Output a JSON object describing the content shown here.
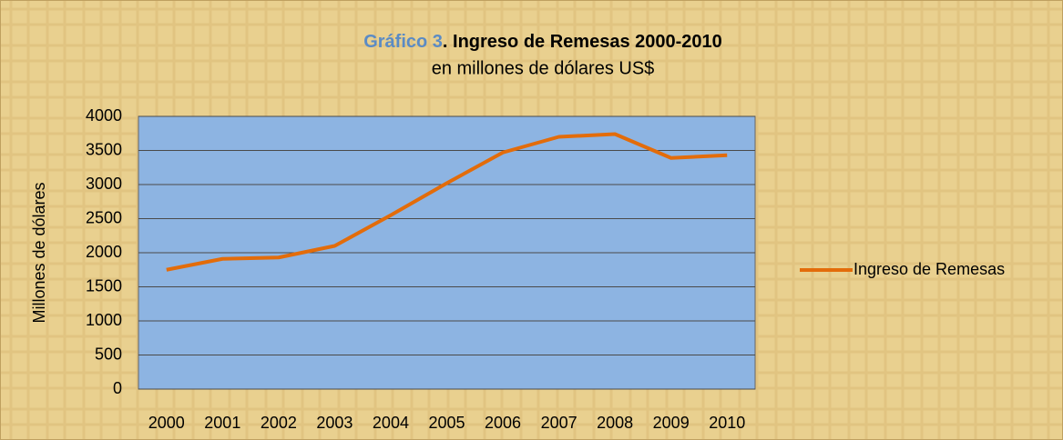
{
  "chart_data": {
    "type": "line",
    "title": [
      "Gráfico 3",
      ". Ingreso de Remesas 2000-2010"
    ],
    "subtitle": "en millones de dólares US$",
    "y_label": "Millones de dólares",
    "categories": [
      "2000",
      "2001",
      "2002",
      "2003",
      "2004",
      "2005",
      "2006",
      "2007",
      "2008",
      "2009",
      "2010"
    ],
    "series": [
      {
        "name": "Ingreso de Remesas",
        "color": "#e36c0a",
        "values": [
          1750,
          1910,
          1930,
          2100,
          2550,
          3020,
          3470,
          3700,
          3740,
          3390,
          3430
        ]
      }
    ],
    "ylim": [
      0,
      4000
    ],
    "yticks": [
      0,
      500,
      1000,
      1500,
      2000,
      2500,
      3000,
      3500,
      4000
    ],
    "grid": true,
    "legend": "right"
  }
}
